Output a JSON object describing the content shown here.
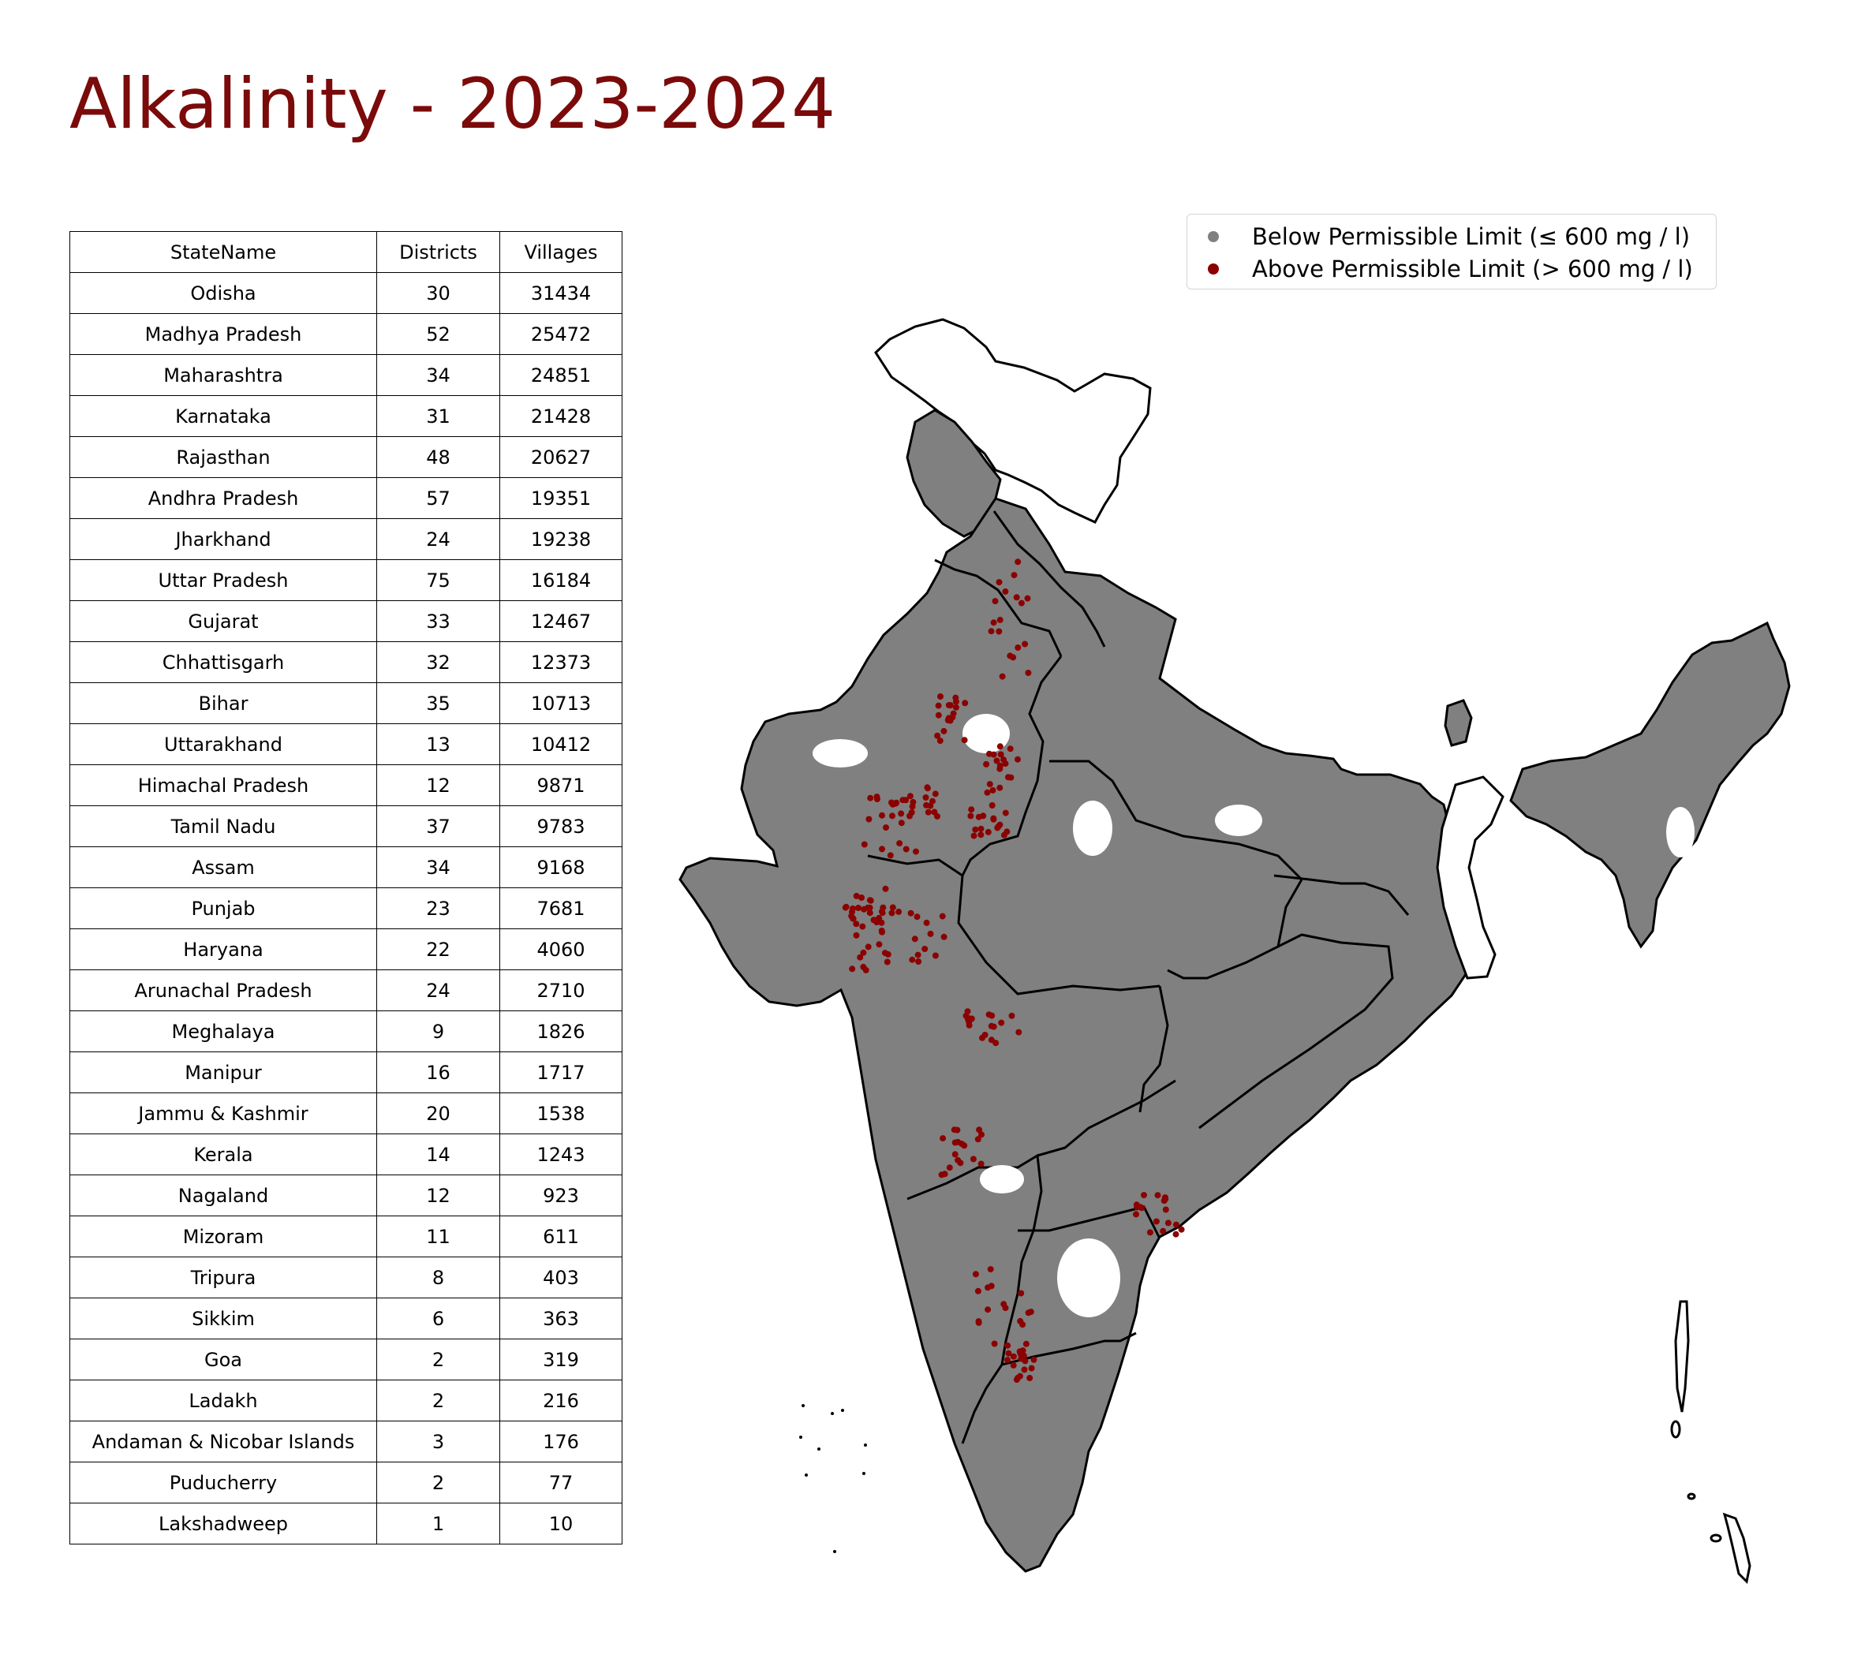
{
  "title": "Alkalinity - 2023-2024",
  "table": {
    "headers": [
      "StateName",
      "Districts",
      "Villages"
    ],
    "rows": [
      [
        "Odisha",
        "30",
        "31434"
      ],
      [
        "Madhya Pradesh",
        "52",
        "25472"
      ],
      [
        "Maharashtra",
        "34",
        "24851"
      ],
      [
        "Karnataka",
        "31",
        "21428"
      ],
      [
        "Rajasthan",
        "48",
        "20627"
      ],
      [
        "Andhra Pradesh",
        "57",
        "19351"
      ],
      [
        "Jharkhand",
        "24",
        "19238"
      ],
      [
        "Uttar Pradesh",
        "75",
        "16184"
      ],
      [
        "Gujarat",
        "33",
        "12467"
      ],
      [
        "Chhattisgarh",
        "32",
        "12373"
      ],
      [
        "Bihar",
        "35",
        "10713"
      ],
      [
        "Uttarakhand",
        "13",
        "10412"
      ],
      [
        "Himachal Pradesh",
        "12",
        "9871"
      ],
      [
        "Tamil Nadu",
        "37",
        "9783"
      ],
      [
        "Assam",
        "34",
        "9168"
      ],
      [
        "Punjab",
        "23",
        "7681"
      ],
      [
        "Haryana",
        "22",
        "4060"
      ],
      [
        "Arunachal Pradesh",
        "24",
        "2710"
      ],
      [
        "Meghalaya",
        "9",
        "1826"
      ],
      [
        "Manipur",
        "16",
        "1717"
      ],
      [
        "Jammu & Kashmir",
        "20",
        "1538"
      ],
      [
        "Kerala",
        "14",
        "1243"
      ],
      [
        "Nagaland",
        "12",
        "923"
      ],
      [
        "Mizoram",
        "11",
        "611"
      ],
      [
        "Tripura",
        "8",
        "403"
      ],
      [
        "Sikkim",
        "6",
        "363"
      ],
      [
        "Goa",
        "2",
        "319"
      ],
      [
        "Ladakh",
        "2",
        "216"
      ],
      [
        "Andaman & Nicobar Islands",
        "3",
        "176"
      ],
      [
        "Puducherry",
        "2",
        "77"
      ],
      [
        "Lakshadweep",
        "1",
        "10"
      ]
    ]
  },
  "legend": {
    "below": {
      "label": "Below Permissible Limit (≤ 600 mg / l)",
      "color": "#808080"
    },
    "above": {
      "label": "Above Permissible Limit (> 600 mg / l)",
      "color": "#8b0000"
    }
  },
  "colors": {
    "title": "#7b0a0a",
    "fill": "#808080",
    "above": "#8b0000",
    "border": "#000000"
  }
}
